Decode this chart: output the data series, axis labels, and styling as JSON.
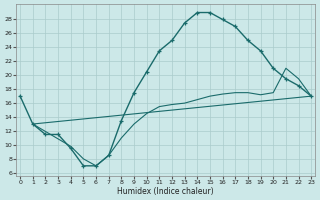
{
  "xlabel": "Humidex (Indice chaleur)",
  "bg_color": "#cce8e8",
  "grid_color": "#aacccc",
  "line_color": "#1a6b6b",
  "xlim": [
    -0.3,
    23.3
  ],
  "ylim": [
    5.5,
    30.2
  ],
  "yticks": [
    6,
    8,
    10,
    12,
    14,
    16,
    18,
    20,
    22,
    24,
    26,
    28
  ],
  "xticks": [
    0,
    1,
    2,
    3,
    4,
    5,
    6,
    7,
    8,
    9,
    10,
    11,
    12,
    13,
    14,
    15,
    16,
    17,
    18,
    19,
    20,
    21,
    22,
    23
  ],
  "curve_x": [
    0,
    1,
    2,
    3,
    4,
    5,
    6,
    7,
    8,
    9,
    10,
    11,
    12,
    13,
    14,
    15,
    16,
    17,
    18,
    19,
    20,
    21,
    22,
    23
  ],
  "curve_y": [
    17,
    13,
    11.5,
    11.5,
    9.5,
    7,
    7,
    8.5,
    13.5,
    17.5,
    20.5,
    23.5,
    25,
    27.5,
    29,
    29,
    28,
    27,
    25,
    23.5,
    21,
    19.5,
    18.5,
    17
  ],
  "trend1_x": [
    1,
    23
  ],
  "trend1_y": [
    13,
    17
  ],
  "trend2_x": [
    1,
    4,
    5,
    6,
    7,
    8,
    9,
    10,
    11,
    12,
    13,
    14,
    15,
    16,
    17,
    18,
    19,
    20,
    21,
    22,
    23
  ],
  "trend2_y": [
    13,
    9.8,
    8,
    7,
    8.5,
    11,
    13,
    14.5,
    15.5,
    15.8,
    16,
    16.5,
    17,
    17.3,
    17.5,
    17.5,
    17.2,
    17.5,
    21,
    19.5,
    17
  ]
}
